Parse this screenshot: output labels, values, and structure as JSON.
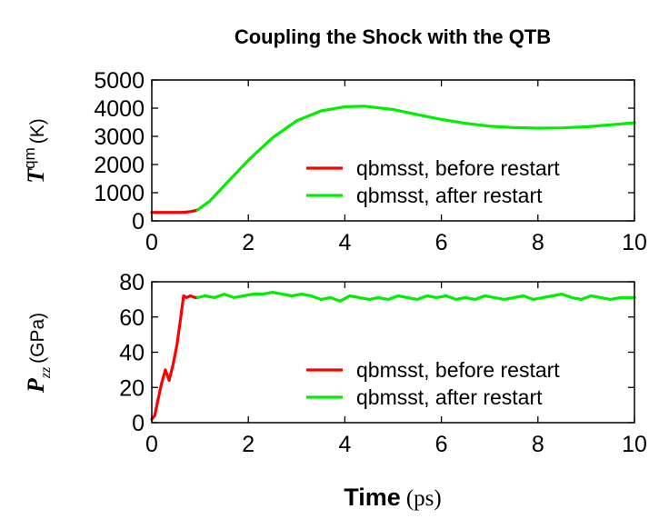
{
  "title": "Coupling the Shock with the QTB",
  "xlabel": {
    "bold": "Time",
    "unit": "(ps)"
  },
  "chart_data": [
    {
      "type": "line",
      "ylabel": {
        "base": "T",
        "sup": "qm",
        "unit": "(K)"
      },
      "xlim": [
        0,
        10
      ],
      "ylim": [
        0,
        5000
      ],
      "xticks": [
        "0",
        "2",
        "4",
        "6",
        "8",
        "10"
      ],
      "yticks": [
        "0",
        "1000",
        "2000",
        "3000",
        "4000",
        "5000"
      ],
      "legend_position": "bottom-right",
      "series": [
        {
          "name": "qbmsst, before restart",
          "color": "#ff0000",
          "x": [
            0,
            0.2,
            0.4,
            0.6,
            0.7,
            0.8,
            0.9,
            0.95
          ],
          "y": [
            300,
            300,
            300,
            300,
            310,
            330,
            360,
            390
          ]
        },
        {
          "name": "qbmsst, after restart",
          "color": "#00ee00",
          "x": [
            0.95,
            1.2,
            1.5,
            2.0,
            2.5,
            3.0,
            3.5,
            4.0,
            4.4,
            5.0,
            5.5,
            6.0,
            6.5,
            7.0,
            7.5,
            8.0,
            8.5,
            9.0,
            9.5,
            10.0
          ],
          "y": [
            390,
            700,
            1250,
            2150,
            2950,
            3550,
            3900,
            4050,
            4070,
            3950,
            3770,
            3600,
            3460,
            3360,
            3310,
            3290,
            3300,
            3340,
            3410,
            3480
          ]
        }
      ]
    },
    {
      "type": "line",
      "ylabel": {
        "base": "P",
        "sub": "zz",
        "unit": "(GPa)"
      },
      "xlim": [
        0,
        10
      ],
      "ylim": [
        0,
        80
      ],
      "xticks": [
        "0",
        "2",
        "4",
        "6",
        "8",
        "10"
      ],
      "yticks": [
        "0",
        "20",
        "40",
        "60",
        "80"
      ],
      "legend_position": "bottom-right",
      "series": [
        {
          "name": "qbmsst, before restart",
          "color": "#ff0000",
          "x": [
            0,
            0.06,
            0.12,
            0.2,
            0.28,
            0.36,
            0.44,
            0.52,
            0.6,
            0.66,
            0.72,
            0.8,
            0.9,
            0.95
          ],
          "y": [
            2,
            4,
            12,
            22,
            30,
            24,
            33,
            44,
            60,
            72,
            71,
            72,
            71,
            71
          ]
        },
        {
          "name": "qbmsst, after restart",
          "color": "#00ee00",
          "x": [
            0.95,
            1.1,
            1.3,
            1.5,
            1.7,
            1.9,
            2.1,
            2.3,
            2.5,
            2.7,
            2.9,
            3.1,
            3.3,
            3.5,
            3.7,
            3.9,
            4.1,
            4.3,
            4.5,
            4.7,
            4.9,
            5.1,
            5.3,
            5.5,
            5.7,
            5.9,
            6.1,
            6.3,
            6.5,
            6.7,
            6.9,
            7.1,
            7.3,
            7.5,
            7.7,
            7.9,
            8.1,
            8.3,
            8.5,
            8.7,
            8.9,
            9.1,
            9.3,
            9.5,
            9.7,
            10.0
          ],
          "y": [
            71,
            72,
            71,
            73,
            71,
            72,
            73,
            73,
            74,
            73,
            72,
            73,
            72,
            70,
            71,
            69,
            72,
            71,
            70,
            71,
            70,
            72,
            71,
            70,
            72,
            71,
            72,
            70,
            71,
            70,
            72,
            71,
            70,
            71,
            72,
            70,
            71,
            72,
            73,
            71,
            70,
            72,
            71,
            70,
            71,
            71
          ]
        }
      ]
    }
  ]
}
